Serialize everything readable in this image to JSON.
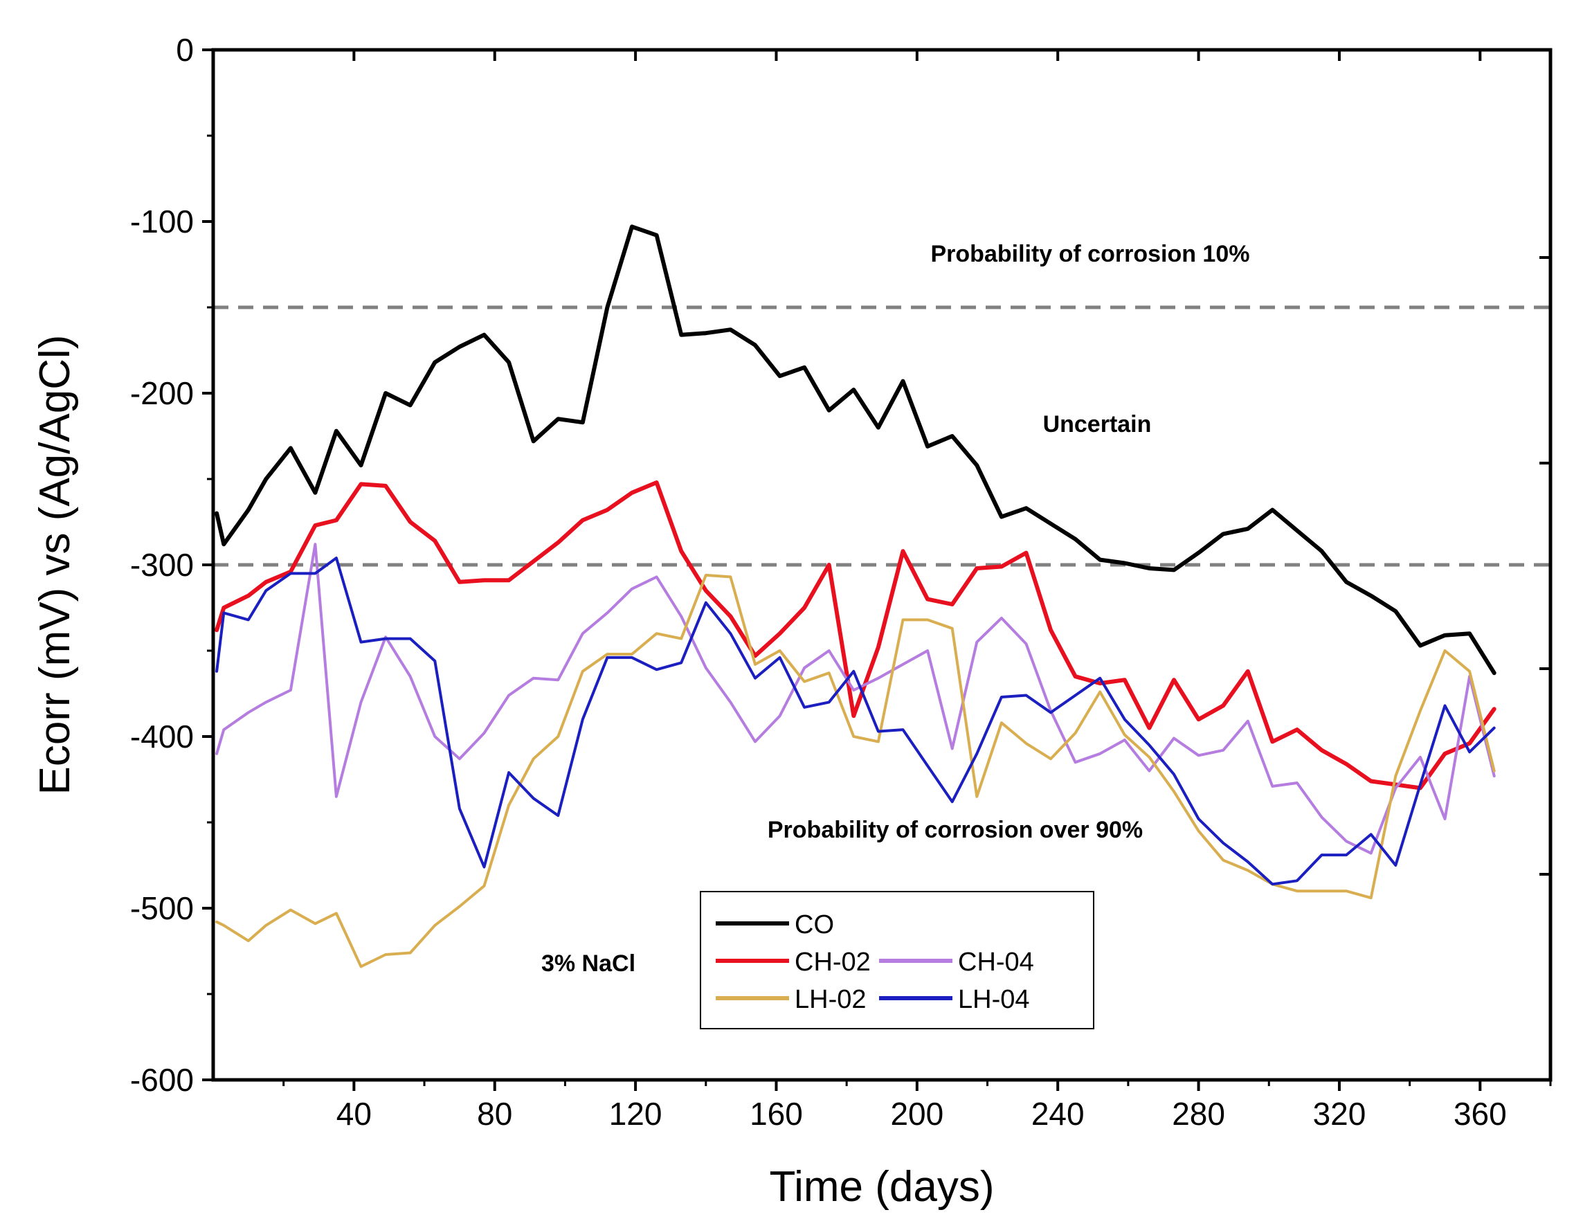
{
  "chart_data": {
    "type": "line",
    "title": "",
    "xlabel": "Time (days)",
    "ylabel": "Ecorr (mV) vs (Ag/AgCl)",
    "xlim": [
      0,
      380
    ],
    "ylim": [
      -600,
      0
    ],
    "x_ticks": [
      40,
      80,
      120,
      160,
      200,
      240,
      280,
      320,
      360
    ],
    "y_ticks": [
      0,
      -100,
      -200,
      -300,
      -400,
      -500,
      -600
    ],
    "x_tick_labels": [
      "40",
      "80",
      "120",
      "160",
      "200",
      "240",
      "280",
      "320",
      "360"
    ],
    "y_tick_labels": [
      "0",
      "-100",
      "-200",
      "-300",
      "-400",
      "-500",
      "-600"
    ],
    "grid": false,
    "legend_position": "bottom-center",
    "thresholds": [
      {
        "value": -150,
        "style": "dashed",
        "color": "#808080"
      },
      {
        "value": -300,
        "style": "dashed",
        "color": "#808080"
      }
    ],
    "annotations": [
      {
        "text": "Probability of  corrosion 10%",
        "x": 240,
        "y": -118
      },
      {
        "text": "Uncertain",
        "x": 233,
        "y": -218
      },
      {
        "text": "Probability of corrosion over 90%",
        "x": 215,
        "y": -455
      },
      {
        "text": "3%  NaCl",
        "x": 103,
        "y": -530
      }
    ],
    "x": [
      1,
      3,
      10,
      15,
      22,
      29,
      35,
      42,
      49,
      56,
      63,
      70,
      77,
      84,
      91,
      98,
      105,
      112,
      119,
      126,
      133,
      140,
      147,
      154,
      161,
      168,
      175,
      182,
      189,
      196,
      203,
      210,
      217,
      224,
      231,
      238,
      245,
      252,
      259,
      266,
      273,
      280,
      287,
      294,
      301,
      308,
      315,
      322,
      329,
      336,
      343,
      350,
      357,
      364
    ],
    "series": [
      {
        "name": "CO",
        "color": "#000000",
        "width": 6,
        "values": [
          -270,
          -288,
          -268,
          -250,
          -232,
          -258,
          -222,
          -242,
          -200,
          -207,
          -182,
          -173,
          -166,
          -182,
          -228,
          -215,
          -217,
          -150,
          -103,
          -108,
          -166,
          -165,
          -163,
          -172,
          -190,
          -185,
          -210,
          -198,
          -220,
          -193,
          -231,
          -225,
          -242,
          -272,
          -267,
          -276,
          -285,
          -297,
          -299,
          -302,
          -303,
          -293,
          -282,
          -279,
          -268,
          -280,
          -292,
          -310,
          -318,
          -327,
          -347,
          -341,
          -340,
          -363
        ]
      },
      {
        "name": "CH-02",
        "color": "#e8101e",
        "width": 6,
        "values": [
          -338,
          -325,
          -318,
          -310,
          -304,
          -277,
          -274,
          -253,
          -254,
          -275,
          -286,
          -310,
          -309,
          -309,
          -298,
          -287,
          -274,
          -268,
          -258,
          -252,
          -292,
          -315,
          -330,
          -353,
          -340,
          -325,
          -300,
          -388,
          -348,
          -292,
          -320,
          -323,
          -302,
          -301,
          -293,
          -338,
          -365,
          -369,
          -367,
          -395,
          -367,
          -390,
          -382,
          -362,
          -403,
          -396,
          -408,
          -416,
          -426,
          -428,
          -430,
          -410,
          -404,
          -384
        ]
      },
      {
        "name": "CH-04",
        "color": "#b57de0",
        "width": 4,
        "values": [
          -410,
          -396,
          -386,
          -380,
          -373,
          -288,
          -435,
          -380,
          -342,
          -365,
          -400,
          -413,
          -398,
          -376,
          -366,
          -367,
          -340,
          -328,
          -314,
          -307,
          -330,
          -360,
          -380,
          -403,
          -388,
          -360,
          -350,
          -373,
          -366,
          -358,
          -350,
          -407,
          -345,
          -331,
          -346,
          -385,
          -415,
          -410,
          -402,
          -420,
          -401,
          -411,
          -408,
          -391,
          -429,
          -427,
          -447,
          -461,
          -468,
          -430,
          -412,
          -448,
          -365,
          -423
        ]
      },
      {
        "name": "LH-02",
        "color": "#d9ae50",
        "width": 4,
        "values": [
          -508,
          -510,
          -519,
          -510,
          -501,
          -509,
          -503,
          -534,
          -527,
          -526,
          -510,
          -499,
          -487,
          -440,
          -413,
          -400,
          -362,
          -352,
          -352,
          -340,
          -343,
          -306,
          -307,
          -358,
          -350,
          -368,
          -363,
          -400,
          -403,
          -332,
          -332,
          -337,
          -435,
          -392,
          -404,
          -413,
          -398,
          -374,
          -399,
          -412,
          -432,
          -455,
          -472,
          -478,
          -486,
          -490,
          -490,
          -490,
          -494,
          -423,
          -385,
          -350,
          -362,
          -420
        ]
      },
      {
        "name": "LH-04",
        "color": "#1b1fc0",
        "width": 4,
        "values": [
          -362,
          -328,
          -332,
          -315,
          -305,
          -305,
          -296,
          -345,
          -343,
          -343,
          -356,
          -442,
          -476,
          -421,
          -436,
          -446,
          -390,
          -354,
          -354,
          -361,
          -357,
          -322,
          -340,
          -366,
          -354,
          -383,
          -380,
          -362,
          -397,
          -396,
          -417,
          -438,
          -410,
          -377,
          -376,
          -386,
          -376,
          -366,
          -390,
          -405,
          -422,
          -448,
          -462,
          -473,
          -486,
          -484,
          -469,
          -469,
          -457,
          -475,
          -428,
          -382,
          -409,
          -395
        ]
      }
    ]
  },
  "legend": {
    "entries": [
      {
        "name": "CO",
        "color": "#000000",
        "col": 0,
        "row": 0
      },
      {
        "name": "CH-02",
        "color": "#e8101e",
        "col": 0,
        "row": 1
      },
      {
        "name": "CH-04",
        "color": "#b57de0",
        "col": 1,
        "row": 1
      },
      {
        "name": "LH-02",
        "color": "#d9ae50",
        "col": 0,
        "row": 2
      },
      {
        "name": "LH-04",
        "color": "#1b1fc0",
        "col": 1,
        "row": 2
      }
    ]
  }
}
